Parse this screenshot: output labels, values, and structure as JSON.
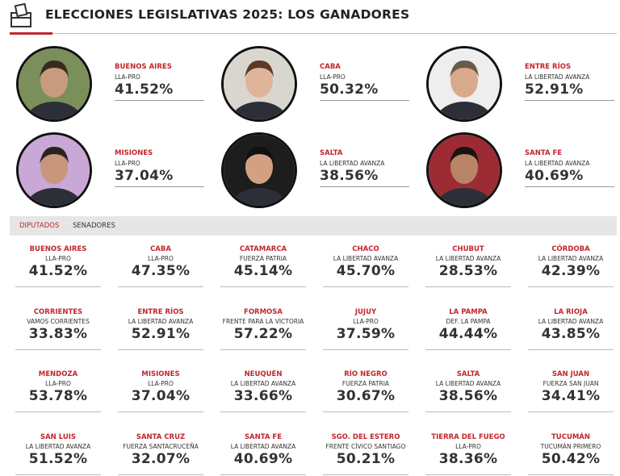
{
  "header": {
    "title": "ELECCIONES LEGISLATIVAS 2025: LOS GANADORES"
  },
  "featured": [
    {
      "province": "BUENOS AIRES",
      "party": "LLA-PRO",
      "pct": "41.52%"
    },
    {
      "province": "CABA",
      "party": "LLA-PRO",
      "pct": "50.32%"
    },
    {
      "province": "ENTRE RÍOS",
      "party": "LA LIBERTAD AVANZA",
      "pct": "52.91%"
    },
    {
      "province": "MISIONES",
      "party": "LLA-PRO",
      "pct": "37.04%"
    },
    {
      "province": "SALTA",
      "party": "LA LIBERTAD AVANZA",
      "pct": "38.56%"
    },
    {
      "province": "SANTA FE",
      "party": "LA LIBERTAD AVANZA",
      "pct": "40.69%"
    }
  ],
  "tabs": [
    "DIPUTADOS",
    "SENADORES"
  ],
  "results": [
    {
      "province": "BUENOS AIRES",
      "party": "LLA-PRO",
      "pct": "41.52%"
    },
    {
      "province": "CABA",
      "party": "LLA-PRO",
      "pct": "47.35%"
    },
    {
      "province": "CATAMARCA",
      "party": "FUERZA PATRIA",
      "pct": "45.14%"
    },
    {
      "province": "CHACO",
      "party": "LA LIBERTAD AVANZA",
      "pct": "45.70%"
    },
    {
      "province": "CHUBUT",
      "party": "LA LIBERTAD AVANZA",
      "pct": "28.53%"
    },
    {
      "province": "CÓRDOBA",
      "party": "LA LIBERTAD AVANZA",
      "pct": "42.39%"
    },
    {
      "province": "CORRIENTES",
      "party": "VAMOS CORRIENTES",
      "pct": "33.83%"
    },
    {
      "province": "ENTRE RÍOS",
      "party": "LA LIBERTAD AVANZA",
      "pct": "52.91%"
    },
    {
      "province": "FORMOSA",
      "party": "FRENTE PARA LA VICTORIA",
      "pct": "57.22%"
    },
    {
      "province": "JUJUY",
      "party": "LLA-PRO",
      "pct": "37.59%"
    },
    {
      "province": "LA PAMPA",
      "party": "DEF. LA PAMPA",
      "pct": "44.44%"
    },
    {
      "province": "LA RIOJA",
      "party": "LA LIBERTAD AVANZA",
      "pct": "43.85%"
    },
    {
      "province": "MENDOZA",
      "party": "LLA-PRO",
      "pct": "53.78%"
    },
    {
      "province": "MISIONES",
      "party": "LLA-PRO",
      "pct": "37.04%"
    },
    {
      "province": "NEUQUÉN",
      "party": "LA LIBERTAD AVANZA",
      "pct": "33.66%"
    },
    {
      "province": "RÍO NEGRO",
      "party": "FUERZA PATRIA",
      "pct": "30.67%"
    },
    {
      "province": "SALTA",
      "party": "LA LIBERTAD AVANZA",
      "pct": "38.56%"
    },
    {
      "province": "SAN JUAN",
      "party": "FUERZA SAN JUAN",
      "pct": "34.41%"
    },
    {
      "province": "SAN LUIS",
      "party": "LA LIBERTAD AVANZA",
      "pct": "51.52%"
    },
    {
      "province": "SANTA CRUZ",
      "party": "FUERZA SANTACRUCEÑA",
      "pct": "32.07%"
    },
    {
      "province": "SANTA FE",
      "party": "LA LIBERTAD AVANZA",
      "pct": "40.69%"
    },
    {
      "province": "SGO. DEL ESTERO",
      "party": "FRENTE CÍVICO SANTIAGO",
      "pct": "50.21%"
    },
    {
      "province": "TIERRA DEL FUEGO",
      "party": "LLA-PRO",
      "pct": "38.36%"
    },
    {
      "province": "TUCUMÁN",
      "party": "TUCUMÁN PRIMERO",
      "pct": "50.42%"
    }
  ]
}
